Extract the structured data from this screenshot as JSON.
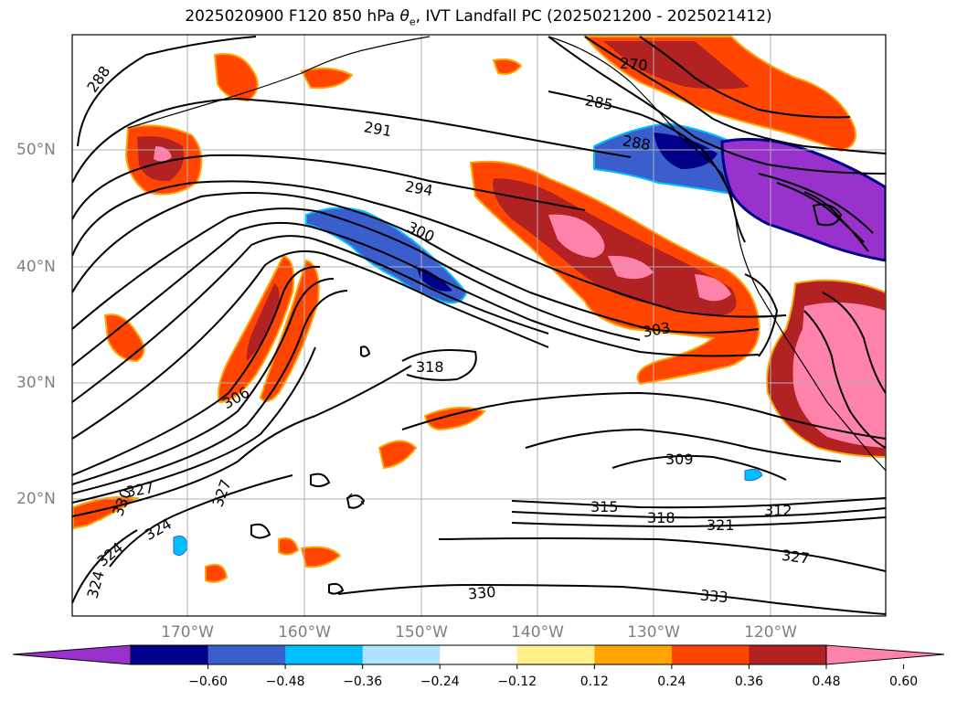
{
  "title": "2025020900 F120 850 hPa θe, IVT Landfall PC (2025021200 - 2025021412)",
  "title_parts": {
    "prefix": "2025020900 F120 850 hPa ",
    "theta": "θ",
    "sub": "e",
    "suffix": ", IVT Landfall PC (2025021200 - 2025021412)"
  },
  "map": {
    "lon_labels": [
      "170°W",
      "160°W",
      "150°W",
      "140°W",
      "130°W",
      "120°W"
    ],
    "lat_labels": [
      "50°N",
      "40°N",
      "30°N",
      "20°N"
    ],
    "grid": true,
    "contour_labels": [
      "288",
      "291",
      "294",
      "300",
      "285",
      "270",
      "288",
      "303",
      "306",
      "318",
      "309",
      "315",
      "318",
      "321",
      "312",
      "327",
      "330",
      "333",
      "324",
      "324",
      "327",
      "324",
      "330",
      "327"
    ]
  },
  "colorbar": {
    "colors": [
      "#9932cc",
      "#00008b",
      "#3a5fcd",
      "#00bfff",
      "#b0e2ff",
      "#ffffff",
      "#fff08a",
      "#ffa500",
      "#ff4500",
      "#b22222",
      "#ff82ab"
    ],
    "ticks": [
      "−0.60",
      "−0.48",
      "−0.36",
      "−0.24",
      "−0.12",
      "0.12",
      "0.24",
      "0.36",
      "0.48",
      "0.60"
    ]
  },
  "legend": {
    "icons": [
      "extend-left-triangle",
      "extend-right-triangle"
    ]
  }
}
